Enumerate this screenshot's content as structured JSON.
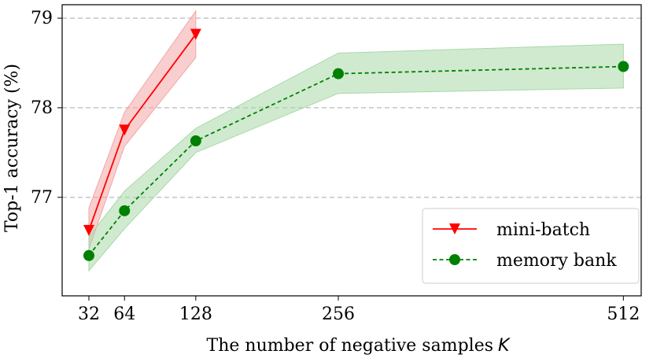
{
  "chart_data": {
    "type": "line",
    "title": "",
    "xlabel": "The number of negative samples",
    "xlabel_var": "K",
    "ylabel": "Top-1 accuracy (%)",
    "x_ticks": [
      32,
      64,
      128,
      256,
      512
    ],
    "x_tick_labels": [
      "32",
      "64",
      "128",
      "256",
      "512"
    ],
    "y_ticks": [
      77,
      78,
      79
    ],
    "y_tick_labels": [
      "77",
      "78",
      "79"
    ],
    "xlim": [
      8,
      528
    ],
    "ylim": [
      75.9,
      79.15
    ],
    "grid": "horizontal dashed",
    "legend_position": "lower-right",
    "series": [
      {
        "name": "mini-batch",
        "color": "#ff0000",
        "band_color": "#f4a6a6",
        "line_style": "solid",
        "marker": "triangle-down",
        "x": [
          32,
          64,
          128
        ],
        "values": [
          76.63,
          77.75,
          78.82
        ],
        "lower": [
          76.42,
          77.57,
          78.56
        ],
        "upper": [
          76.88,
          77.95,
          79.08
        ]
      },
      {
        "name": "memory bank",
        "color": "#008000",
        "band_color": "#a9d8a9",
        "line_style": "dashed",
        "marker": "circle",
        "x": [
          32,
          64,
          128,
          256,
          512
        ],
        "values": [
          76.35,
          76.85,
          77.63,
          78.38,
          78.46
        ],
        "lower": [
          76.18,
          76.65,
          77.5,
          78.16,
          78.22
        ],
        "upper": [
          76.56,
          77.07,
          77.77,
          78.61,
          78.71
        ]
      }
    ]
  }
}
